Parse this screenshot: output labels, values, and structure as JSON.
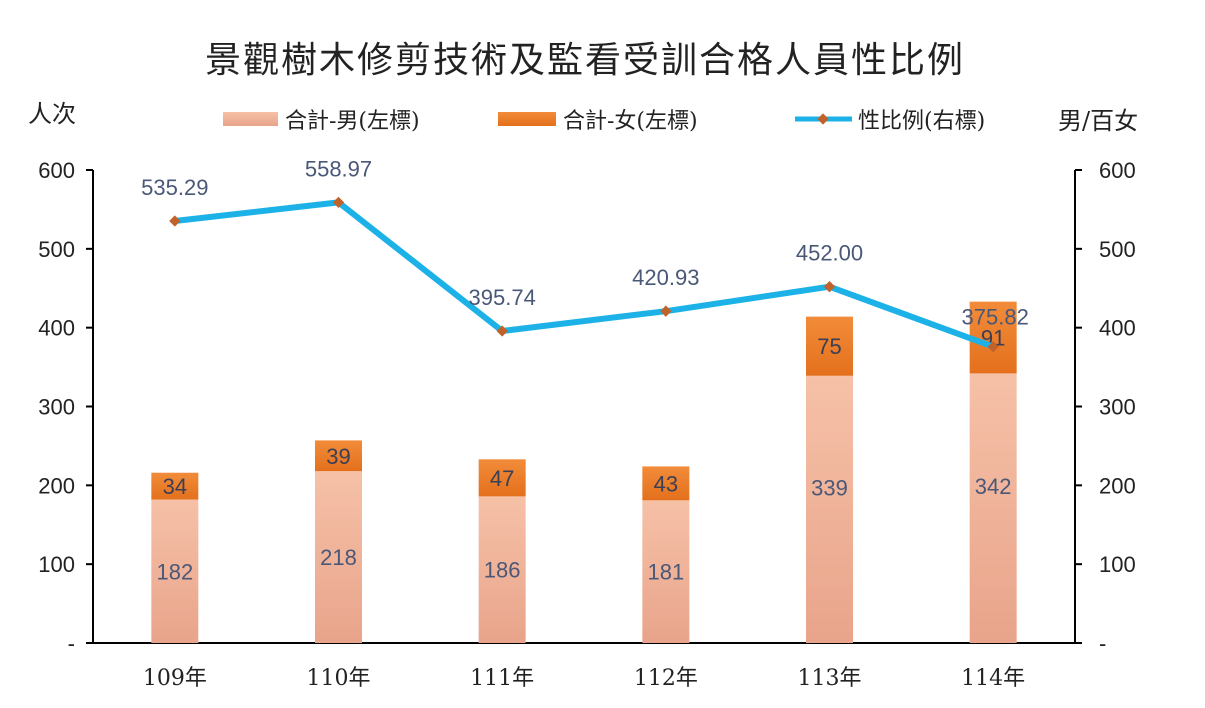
{
  "chart_data": {
    "type": "bar",
    "title": "景觀樹木修剪技術及監看受訓合格人員性比例",
    "ylabel_left": "人次",
    "ylabel_right": "男/百女",
    "categories": [
      "109年",
      "110年",
      "111年",
      "112年",
      "113年",
      "114年"
    ],
    "ylim_left": [
      0,
      600
    ],
    "ylim_right": [
      0,
      600
    ],
    "yticks_left": [
      "-",
      "100",
      "200",
      "300",
      "400",
      "500",
      "600"
    ],
    "yticks_right": [
      "-",
      "100",
      "200",
      "300",
      "400",
      "500",
      "600"
    ],
    "grid": false,
    "legend_position": "top",
    "series": [
      {
        "name": "合計-男(左標)",
        "type": "bar",
        "axis": "left",
        "stacked": true,
        "color": "#f4b59b",
        "values": [
          182,
          218,
          186,
          181,
          339,
          342
        ],
        "labels": [
          "182",
          "218",
          "186",
          "181",
          "339",
          "342"
        ]
      },
      {
        "name": "合計-女(左標)",
        "type": "bar",
        "axis": "left",
        "stacked": true,
        "color": "#ee7a24",
        "values": [
          34,
          39,
          47,
          43,
          75,
          91
        ],
        "labels": [
          "34",
          "39",
          "47",
          "43",
          "75",
          "91"
        ]
      },
      {
        "name": "性比例(右標)",
        "type": "line",
        "axis": "right",
        "color": "#1cb2e8",
        "marker_color": "#c0622a",
        "values": [
          535.29,
          558.97,
          395.74,
          420.93,
          452.0,
          375.82
        ],
        "labels": [
          "535.29",
          "558.97",
          "395.74",
          "420.93",
          "452.00",
          "375.82"
        ]
      }
    ]
  }
}
